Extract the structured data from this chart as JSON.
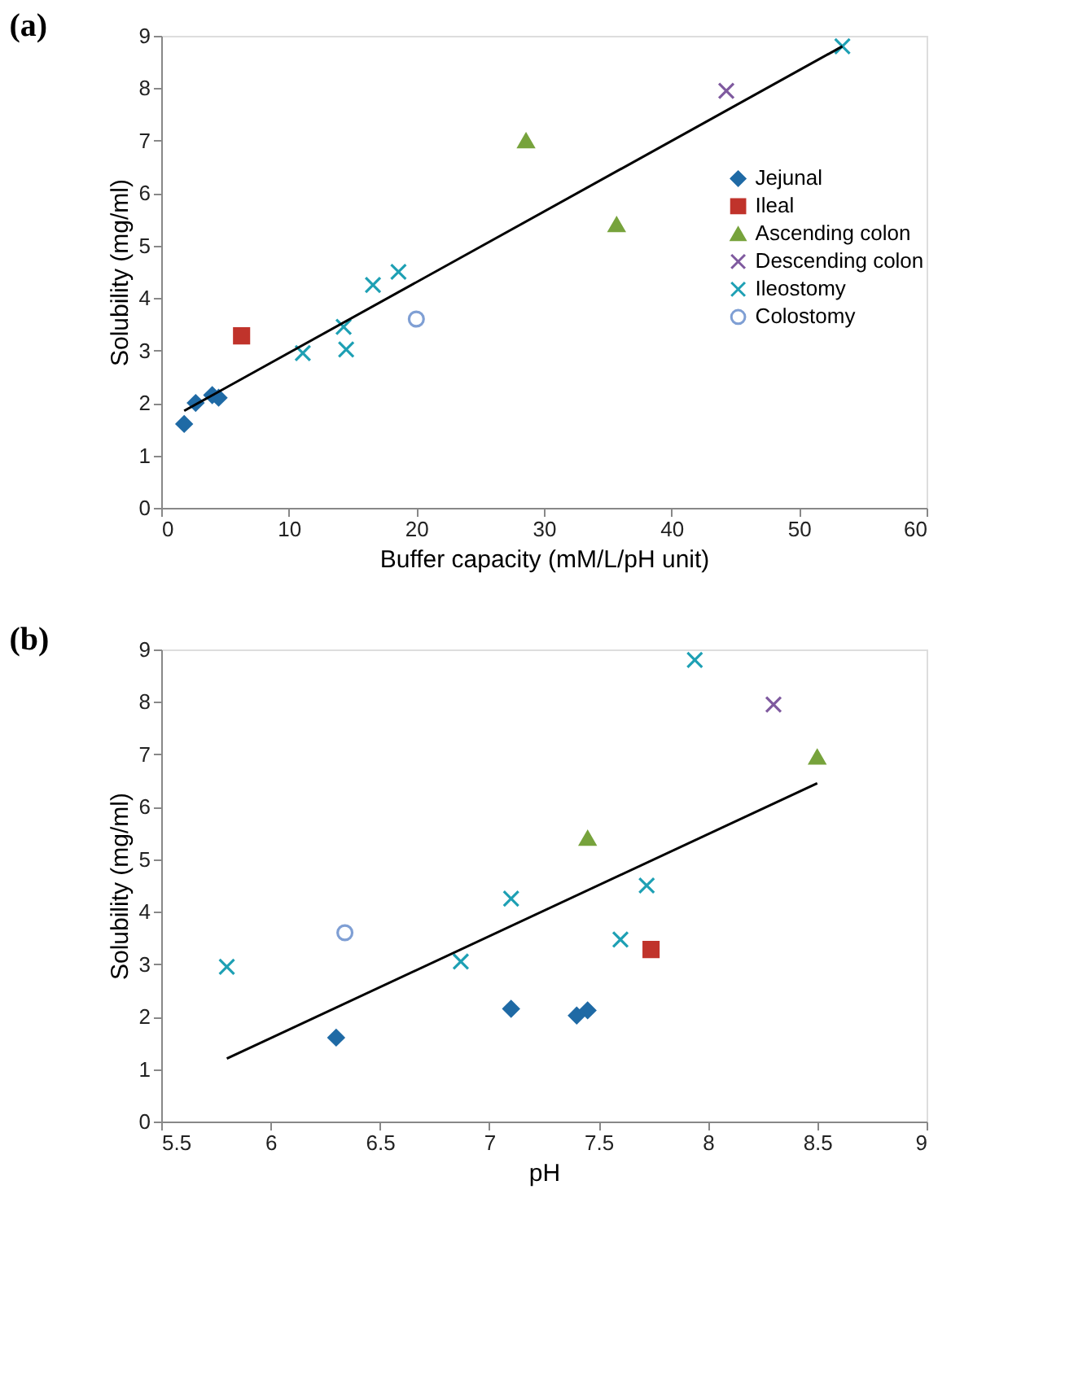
{
  "chart_data": [
    {
      "type": "scatter",
      "title": "(a)",
      "xlabel": "Buffer capacity (mM/L/pH unit)",
      "ylabel": "Solubility (mg/ml)",
      "xlim": [
        0,
        60
      ],
      "xticks": [
        0,
        10,
        20,
        30,
        40,
        50,
        60
      ],
      "ylim": [
        0,
        9
      ],
      "yticks": [
        0,
        1,
        2,
        3,
        4,
        5,
        6,
        7,
        8,
        9
      ],
      "grid": false,
      "legend": "right",
      "series": [
        {
          "name": "Jejunal",
          "color": "#1f6aa5",
          "marker": "diamond",
          "x": [
            1.8,
            2.7,
            4.0,
            4.5
          ],
          "values": [
            1.6,
            2.0,
            2.15,
            2.1
          ]
        },
        {
          "name": "Ileal",
          "color": "#c0332b",
          "marker": "square",
          "x": [
            6.3
          ],
          "values": [
            3.28
          ]
        },
        {
          "name": "Ascending colon",
          "color": "#77a33c",
          "marker": "triangle",
          "x": [
            28.6,
            35.7
          ],
          "values": [
            7.0,
            5.4
          ]
        },
        {
          "name": "Descending colon",
          "color": "#7f5a9f",
          "marker": "cross",
          "x": [
            44.3
          ],
          "values": [
            7.95
          ]
        },
        {
          "name": "Ileostomy",
          "color": "#1ea0b4",
          "marker": "cross",
          "x": [
            11.1,
            14.3,
            14.5,
            16.6,
            18.6,
            53.4
          ],
          "values": [
            2.95,
            3.45,
            3.02,
            4.25,
            4.5,
            8.8
          ]
        },
        {
          "name": "Colostomy",
          "color": "#7f9fd4",
          "marker": "circle",
          "x": [
            20.0
          ],
          "values": [
            3.6
          ]
        },
        {
          "type": "line",
          "color": "#000000",
          "marker": "none",
          "x": [
            1.8,
            53.4
          ],
          "values": [
            1.85,
            8.8
          ]
        }
      ]
    },
    {
      "type": "scatter",
      "title": "(b)",
      "xlabel": "pH",
      "ylabel": "Solubility (mg/ml)",
      "xlim": [
        5.5,
        9
      ],
      "xticks": [
        5.5,
        6,
        6.5,
        7,
        7.5,
        8,
        8.5,
        9
      ],
      "ylim": [
        0,
        9
      ],
      "yticks": [
        0,
        1,
        2,
        3,
        4,
        5,
        6,
        7,
        8,
        9
      ],
      "grid": false,
      "legend": "right",
      "series": [
        {
          "name": "Jejunal",
          "color": "#1f6aa5",
          "marker": "diamond",
          "x": [
            6.3,
            7.1,
            7.4,
            7.45
          ],
          "values": [
            1.6,
            2.15,
            2.02,
            2.12
          ]
        },
        {
          "name": "Ileal",
          "color": "#c0332b",
          "marker": "square",
          "x": [
            7.74
          ],
          "values": [
            3.28
          ]
        },
        {
          "name": "Ascending colon",
          "color": "#77a33c",
          "marker": "triangle",
          "x": [
            7.45,
            8.5
          ],
          "values": [
            5.4,
            6.95
          ]
        },
        {
          "name": "Descending colon",
          "color": "#7f5a9f",
          "marker": "cross",
          "x": [
            8.3
          ],
          "values": [
            7.95
          ]
        },
        {
          "name": "Ileostomy",
          "color": "#1ea0b4",
          "marker": "cross",
          "x": [
            5.8,
            6.87,
            7.1,
            7.6,
            7.72,
            7.94
          ],
          "values": [
            2.95,
            3.05,
            4.25,
            3.47,
            4.5,
            8.8
          ]
        },
        {
          "name": "Colostomy",
          "color": "#7f9fd4",
          "marker": "circle",
          "x": [
            6.34
          ],
          "values": [
            3.6
          ]
        },
        {
          "type": "line",
          "color": "#000000",
          "marker": "none",
          "x": [
            5.8,
            8.5
          ],
          "values": [
            1.2,
            6.45
          ]
        }
      ]
    }
  ]
}
